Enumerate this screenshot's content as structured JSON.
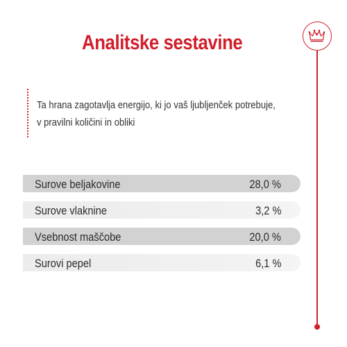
{
  "header": {
    "title": "Analitske sestavine"
  },
  "badge": {
    "icon": "crown-icon",
    "color": "#d01f2b"
  },
  "intro": {
    "lines": [
      "Ta hrana zagotavlja energijo, ki jo vaš ljubljenček potrebuje,",
      "v pravilni količini in obliki"
    ]
  },
  "constituents": [
    {
      "label": "Surove beljakovine",
      "value": "28,0 %"
    },
    {
      "label": "Surove vlaknine",
      "value": "3,2 %"
    },
    {
      "label": "Vsebnost maščobe",
      "value": "20,0 %"
    },
    {
      "label": "Surovi pepel",
      "value": "6,1 %"
    }
  ],
  "colors": {
    "accent": "#d01f2b",
    "row_dark": "#d2d2d2",
    "row_light": "#ececec"
  }
}
